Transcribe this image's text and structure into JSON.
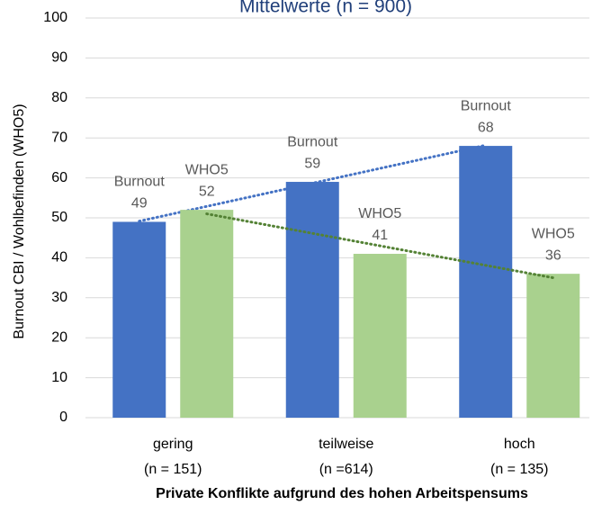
{
  "chart_data": {
    "type": "bar",
    "title": "Mittelwerte (n = 900)",
    "x_label": "Private Konflikte aufgrund des hohen Arbeitspensums",
    "y_label": "Burnout CBI  / Wohlbefinden (WHO5)",
    "categories": [
      "gering",
      "teilweise",
      "hoch"
    ],
    "category_subtitles": [
      "(n = 151)",
      "(n =614)",
      "(n = 135)"
    ],
    "series": [
      {
        "name": "Burnout",
        "color": "#4472c4",
        "trendline": true,
        "trendline_color": "#4472c4",
        "values": [
          49,
          59,
          68
        ]
      },
      {
        "name": "WHO5",
        "color": "#a9d18e",
        "trendline": true,
        "trendline_color": "#548235",
        "values": [
          52,
          41,
          36
        ]
      }
    ],
    "ylim": [
      0,
      100
    ],
    "yticks": [
      0,
      10,
      20,
      30,
      40,
      50,
      60,
      70,
      80,
      90,
      100
    ],
    "grid": true
  }
}
